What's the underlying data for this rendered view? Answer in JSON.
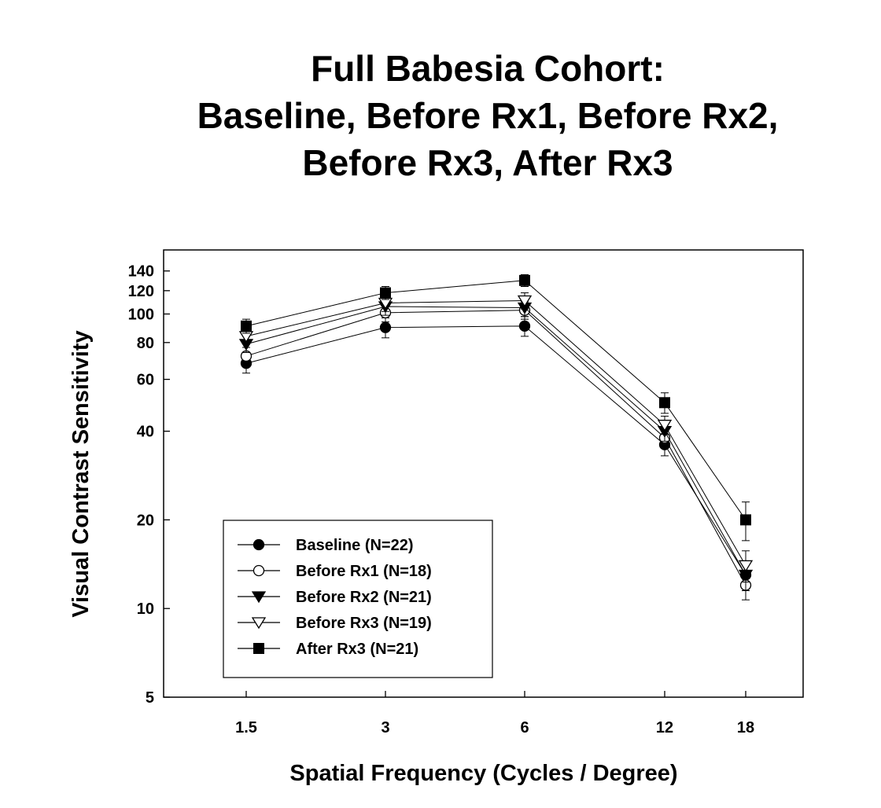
{
  "chart_data": {
    "type": "line",
    "title_lines": [
      "Full Babesia Cohort:",
      "Baseline, Before Rx1, Before Rx2,",
      "Before Rx3, After Rx3"
    ],
    "xlabel": "Spatial Frequency (Cycles / Degree)",
    "ylabel": "Visual Contrast Sensitivity",
    "x": [
      1.5,
      3,
      6,
      12,
      18
    ],
    "x_tick_labels": [
      "1.5",
      "3",
      "6",
      "12",
      "18"
    ],
    "yscale": "log",
    "ylim": [
      5,
      165
    ],
    "y_ticks": [
      5,
      10,
      20,
      40,
      60,
      80,
      100,
      120,
      140
    ],
    "y_tick_labels": [
      "5",
      "10",
      "20",
      "40",
      "60",
      "80",
      "100",
      "120",
      "140"
    ],
    "legend_position": "bottom-left",
    "grid": false,
    "series": [
      {
        "name": "Baseline (N=22)",
        "marker": "filled-circle",
        "values": [
          68,
          90,
          91,
          36,
          13
        ],
        "errors": [
          5,
          7,
          7,
          3,
          1.5
        ]
      },
      {
        "name": "Before Rx1 (N=18)",
        "marker": "open-circle",
        "values": [
          72,
          101,
          103,
          38,
          12
        ],
        "errors": [
          5,
          7,
          7,
          3,
          1.3
        ]
      },
      {
        "name": "Before Rx2 (N=21)",
        "marker": "filled-triangle-down",
        "values": [
          79,
          106,
          105,
          40,
          13
        ],
        "errors": [
          5,
          7,
          7,
          3,
          1.5
        ]
      },
      {
        "name": "Before Rx3 (N=19)",
        "marker": "open-triangle-down",
        "values": [
          84,
          109,
          111,
          42,
          14
        ],
        "errors": [
          5,
          7,
          7,
          3,
          1.7
        ]
      },
      {
        "name": "After Rx3 (N=21)",
        "marker": "filled-square",
        "values": [
          91,
          118,
          130,
          50,
          20
        ],
        "errors": [
          5,
          6,
          6,
          4,
          3
        ]
      }
    ]
  }
}
